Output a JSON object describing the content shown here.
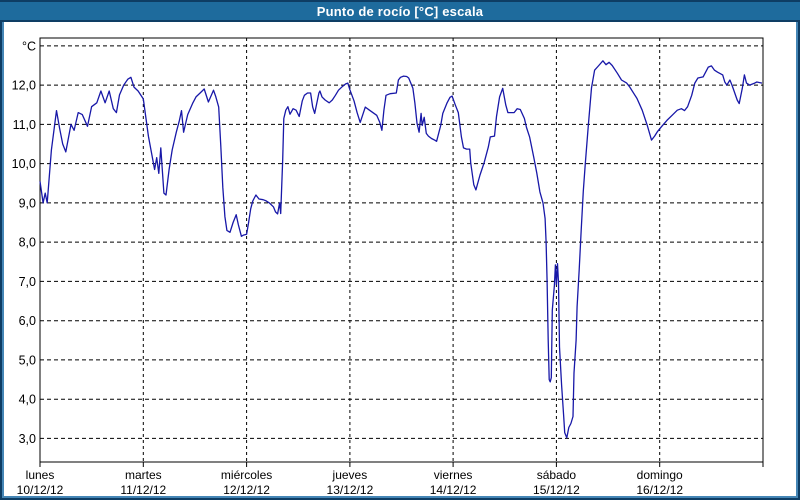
{
  "window": {
    "title": "Punto de rocío [°C] escala"
  },
  "colors": {
    "title_bar": "#1e6b9d",
    "title_text": "#ffffff",
    "frame_dark": "#0e3d64",
    "frame_light": "#4586b6",
    "plot_background": "#ffffff",
    "grid": "#000000",
    "line": "#1818a8"
  },
  "chart_data": {
    "type": "line",
    "title": "Punto de rocío [°C] escala",
    "unit_label": "°C",
    "decimal_separator": ",",
    "grid": "dashed",
    "legend": "none",
    "ylim": [
      2.4,
      13.2
    ],
    "x_range_days": 7,
    "y_ticks": [
      {
        "value": 13,
        "label": "°C"
      },
      {
        "value": 12,
        "label": "12,0"
      },
      {
        "value": 11,
        "label": "11,0"
      },
      {
        "value": 10,
        "label": "10,0"
      },
      {
        "value": 9,
        "label": "9,0"
      },
      {
        "value": 8,
        "label": "8,0"
      },
      {
        "value": 7,
        "label": "7,0"
      },
      {
        "value": 6,
        "label": "6,0"
      },
      {
        "value": 5,
        "label": "5,0"
      },
      {
        "value": 4,
        "label": "4,0"
      },
      {
        "value": 3,
        "label": "3,0"
      }
    ],
    "x_ticks": [
      {
        "t": 0,
        "day": "lunes",
        "date": "10/12/12"
      },
      {
        "t": 1,
        "day": "martes",
        "date": "11/12/12"
      },
      {
        "t": 2,
        "day": "miércoles",
        "date": "12/12/12"
      },
      {
        "t": 3,
        "day": "jueves",
        "date": "13/12/12"
      },
      {
        "t": 4,
        "day": "viernes",
        "date": "14/12/12"
      },
      {
        "t": 5,
        "day": "sábado",
        "date": "15/12/12"
      },
      {
        "t": 6,
        "day": "domingo",
        "date": "16/12/12"
      }
    ],
    "series": [
      {
        "name": "Punto de rocío",
        "color": "#1818a8",
        "points": [
          [
            0,
            9.55
          ],
          [
            0.03,
            9.0
          ],
          [
            0.05,
            9.25
          ],
          [
            0.07,
            9.0
          ],
          [
            0.11,
            10.35
          ],
          [
            0.16,
            11.35
          ],
          [
            0.19,
            10.9
          ],
          [
            0.22,
            10.5
          ],
          [
            0.25,
            10.3
          ],
          [
            0.3,
            11.0
          ],
          [
            0.33,
            10.85
          ],
          [
            0.37,
            11.3
          ],
          [
            0.41,
            11.25
          ],
          [
            0.46,
            10.95
          ],
          [
            0.5,
            11.45
          ],
          [
            0.55,
            11.55
          ],
          [
            0.59,
            11.85
          ],
          [
            0.63,
            11.55
          ],
          [
            0.67,
            11.85
          ],
          [
            0.71,
            11.4
          ],
          [
            0.74,
            11.3
          ],
          [
            0.77,
            11.75
          ],
          [
            0.81,
            12.0
          ],
          [
            0.85,
            12.15
          ],
          [
            0.88,
            12.2
          ],
          [
            0.91,
            11.95
          ],
          [
            0.95,
            11.85
          ],
          [
            1.0,
            11.65
          ],
          [
            1.05,
            10.7
          ],
          [
            1.11,
            9.85
          ],
          [
            1.13,
            10.15
          ],
          [
            1.15,
            9.75
          ],
          [
            1.17,
            10.4
          ],
          [
            1.2,
            9.25
          ],
          [
            1.22,
            9.2
          ],
          [
            1.25,
            9.85
          ],
          [
            1.28,
            10.35
          ],
          [
            1.32,
            10.8
          ],
          [
            1.35,
            11.1
          ],
          [
            1.37,
            11.35
          ],
          [
            1.39,
            10.8
          ],
          [
            1.43,
            11.25
          ],
          [
            1.48,
            11.55
          ],
          [
            1.51,
            11.7
          ],
          [
            1.55,
            11.8
          ],
          [
            1.59,
            11.9
          ],
          [
            1.63,
            11.57
          ],
          [
            1.68,
            11.87
          ],
          [
            1.7,
            11.72
          ],
          [
            1.73,
            11.44
          ],
          [
            1.75,
            10.45
          ],
          [
            1.77,
            9.4
          ],
          [
            1.79,
            8.65
          ],
          [
            1.81,
            8.3
          ],
          [
            1.84,
            8.25
          ],
          [
            1.87,
            8.5
          ],
          [
            1.9,
            8.7
          ],
          [
            1.92,
            8.45
          ],
          [
            1.95,
            8.15
          ],
          [
            1.97,
            8.18
          ],
          [
            2.0,
            8.2
          ],
          [
            2.02,
            8.5
          ],
          [
            2.04,
            8.85
          ],
          [
            2.06,
            9.05
          ],
          [
            2.09,
            9.2
          ],
          [
            2.12,
            9.1
          ],
          [
            2.16,
            9.08
          ],
          [
            2.19,
            9.05
          ],
          [
            2.22,
            9.0
          ],
          [
            2.26,
            8.9
          ],
          [
            2.28,
            8.77
          ],
          [
            2.3,
            8.72
          ],
          [
            2.32,
            9.0
          ],
          [
            2.33,
            8.73
          ],
          [
            2.35,
            10.1
          ],
          [
            2.36,
            11.15
          ],
          [
            2.38,
            11.36
          ],
          [
            2.4,
            11.45
          ],
          [
            2.42,
            11.26
          ],
          [
            2.45,
            11.4
          ],
          [
            2.48,
            11.36
          ],
          [
            2.51,
            11.2
          ],
          [
            2.54,
            11.6
          ],
          [
            2.56,
            11.74
          ],
          [
            2.59,
            11.8
          ],
          [
            2.62,
            11.8
          ],
          [
            2.64,
            11.44
          ],
          [
            2.66,
            11.28
          ],
          [
            2.7,
            11.8
          ],
          [
            2.71,
            11.85
          ],
          [
            2.73,
            11.7
          ],
          [
            2.76,
            11.62
          ],
          [
            2.8,
            11.55
          ],
          [
            2.83,
            11.62
          ],
          [
            2.86,
            11.74
          ],
          [
            2.89,
            11.87
          ],
          [
            2.93,
            11.97
          ],
          [
            2.96,
            12.03
          ],
          [
            2.98,
            12.05
          ],
          [
            3.0,
            11.88
          ],
          [
            3.04,
            11.6
          ],
          [
            3.07,
            11.3
          ],
          [
            3.1,
            11.05
          ],
          [
            3.15,
            11.44
          ],
          [
            3.19,
            11.36
          ],
          [
            3.26,
            11.23
          ],
          [
            3.29,
            11.05
          ],
          [
            3.31,
            10.85
          ],
          [
            3.33,
            11.36
          ],
          [
            3.35,
            11.74
          ],
          [
            3.39,
            11.78
          ],
          [
            3.45,
            11.8
          ],
          [
            3.47,
            12.13
          ],
          [
            3.49,
            12.2
          ],
          [
            3.52,
            12.23
          ],
          [
            3.55,
            12.22
          ],
          [
            3.57,
            12.18
          ],
          [
            3.61,
            11.92
          ],
          [
            3.63,
            11.54
          ],
          [
            3.65,
            11.03
          ],
          [
            3.67,
            10.8
          ],
          [
            3.69,
            11.28
          ],
          [
            3.7,
            10.97
          ],
          [
            3.72,
            11.18
          ],
          [
            3.74,
            10.77
          ],
          [
            3.76,
            10.7
          ],
          [
            3.79,
            10.64
          ],
          [
            3.82,
            10.6
          ],
          [
            3.84,
            10.57
          ],
          [
            3.88,
            10.97
          ],
          [
            3.9,
            11.28
          ],
          [
            3.94,
            11.54
          ],
          [
            3.97,
            11.69
          ],
          [
            3.99,
            11.72
          ],
          [
            4.02,
            11.5
          ],
          [
            4.05,
            11.3
          ],
          [
            4.08,
            10.68
          ],
          [
            4.1,
            10.4
          ],
          [
            4.13,
            10.37
          ],
          [
            4.16,
            10.37
          ],
          [
            4.17,
            10.02
          ],
          [
            4.2,
            9.46
          ],
          [
            4.22,
            9.33
          ],
          [
            4.26,
            9.71
          ],
          [
            4.3,
            10.02
          ],
          [
            4.34,
            10.42
          ],
          [
            4.36,
            10.68
          ],
          [
            4.4,
            10.7
          ],
          [
            4.42,
            11.2
          ],
          [
            4.45,
            11.7
          ],
          [
            4.48,
            11.92
          ],
          [
            4.51,
            11.49
          ],
          [
            4.53,
            11.3
          ],
          [
            4.59,
            11.3
          ],
          [
            4.62,
            11.4
          ],
          [
            4.65,
            11.38
          ],
          [
            4.69,
            11.15
          ],
          [
            4.71,
            10.92
          ],
          [
            4.74,
            10.68
          ],
          [
            4.78,
            10.17
          ],
          [
            4.81,
            9.76
          ],
          [
            4.84,
            9.28
          ],
          [
            4.87,
            9.0
          ],
          [
            4.89,
            8.6
          ],
          [
            4.9,
            8.0
          ],
          [
            4.91,
            7.0
          ],
          [
            4.92,
            5.5
          ],
          [
            4.93,
            4.5
          ],
          [
            4.94,
            4.44
          ],
          [
            4.95,
            4.55
          ],
          [
            4.96,
            6.27
          ],
          [
            4.98,
            6.9
          ],
          [
            4.99,
            7.42
          ],
          [
            5.0,
            6.92
          ],
          [
            5.01,
            7.45
          ],
          [
            5.02,
            6.97
          ],
          [
            5.03,
            5.33
          ],
          [
            5.05,
            4.36
          ],
          [
            5.07,
            3.56
          ],
          [
            5.08,
            3.15
          ],
          [
            5.1,
            3.02
          ],
          [
            5.12,
            3.28
          ],
          [
            5.14,
            3.38
          ],
          [
            5.16,
            3.56
          ],
          [
            5.17,
            4.67
          ],
          [
            5.19,
            5.5
          ],
          [
            5.2,
            6.36
          ],
          [
            5.22,
            7.3
          ],
          [
            5.24,
            8.31
          ],
          [
            5.26,
            9.3
          ],
          [
            5.28,
            10.0
          ],
          [
            5.31,
            11.0
          ],
          [
            5.34,
            11.93
          ],
          [
            5.37,
            12.38
          ],
          [
            5.41,
            12.5
          ],
          [
            5.45,
            12.62
          ],
          [
            5.48,
            12.52
          ],
          [
            5.51,
            12.58
          ],
          [
            5.54,
            12.5
          ],
          [
            5.59,
            12.3
          ],
          [
            5.63,
            12.13
          ],
          [
            5.68,
            12.05
          ],
          [
            5.71,
            11.95
          ],
          [
            5.78,
            11.66
          ],
          [
            5.83,
            11.36
          ],
          [
            5.88,
            10.97
          ],
          [
            5.92,
            10.6
          ],
          [
            5.95,
            10.7
          ],
          [
            5.98,
            10.82
          ],
          [
            6.02,
            10.95
          ],
          [
            6.07,
            11.1
          ],
          [
            6.12,
            11.23
          ],
          [
            6.17,
            11.36
          ],
          [
            6.21,
            11.4
          ],
          [
            6.24,
            11.35
          ],
          [
            6.27,
            11.45
          ],
          [
            6.31,
            11.74
          ],
          [
            6.34,
            12.05
          ],
          [
            6.37,
            12.18
          ],
          [
            6.42,
            12.21
          ],
          [
            6.47,
            12.46
          ],
          [
            6.5,
            12.49
          ],
          [
            6.53,
            12.38
          ],
          [
            6.56,
            12.33
          ],
          [
            6.61,
            12.26
          ],
          [
            6.63,
            12.08
          ],
          [
            6.65,
            12.0
          ],
          [
            6.68,
            12.13
          ],
          [
            6.7,
            12.0
          ],
          [
            6.75,
            11.62
          ],
          [
            6.77,
            11.53
          ],
          [
            6.8,
            11.92
          ],
          [
            6.82,
            12.26
          ],
          [
            6.84,
            12.05
          ],
          [
            6.87,
            12.0
          ],
          [
            6.92,
            12.05
          ],
          [
            6.94,
            12.08
          ],
          [
            6.99,
            12.05
          ]
        ]
      }
    ]
  }
}
